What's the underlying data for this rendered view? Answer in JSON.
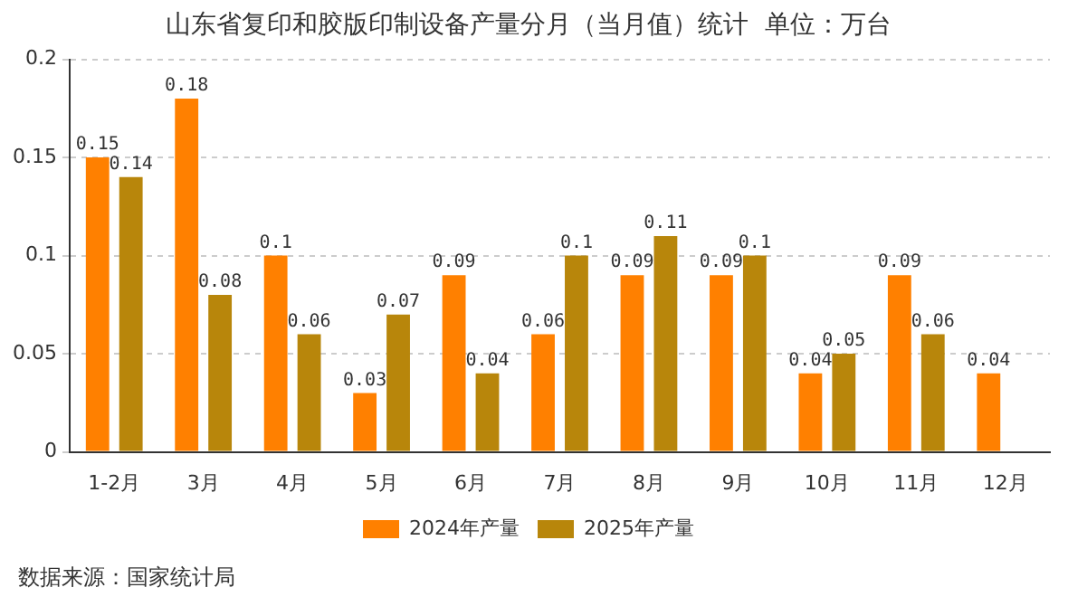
{
  "chart_data": {
    "type": "bar",
    "title": "山东省复印和胶版印制设备产量分月（当月值）统计  单位：万台",
    "categories": [
      "1-2月",
      "3月",
      "4月",
      "5月",
      "6月",
      "7月",
      "8月",
      "9月",
      "10月",
      "11月",
      "12月"
    ],
    "series": [
      {
        "name": "2024年产量",
        "color": "#ff8000",
        "values": [
          0.15,
          0.18,
          0.1,
          0.03,
          0.09,
          0.06,
          0.09,
          0.09,
          0.04,
          0.09,
          0.04
        ]
      },
      {
        "name": "2025年产量",
        "color": "#b8860b",
        "values": [
          0.14,
          0.08,
          0.06,
          0.07,
          0.04,
          0.1,
          0.11,
          0.1,
          0.05,
          0.06,
          null
        ]
      }
    ],
    "ylim": [
      0,
      0.2
    ],
    "yticks": [
      0,
      0.05,
      0.1,
      0.15,
      0.2
    ],
    "grid": "y",
    "legend": "bottom",
    "data_labels": true,
    "annotations": [
      "数据来源：国家统计局"
    ]
  }
}
